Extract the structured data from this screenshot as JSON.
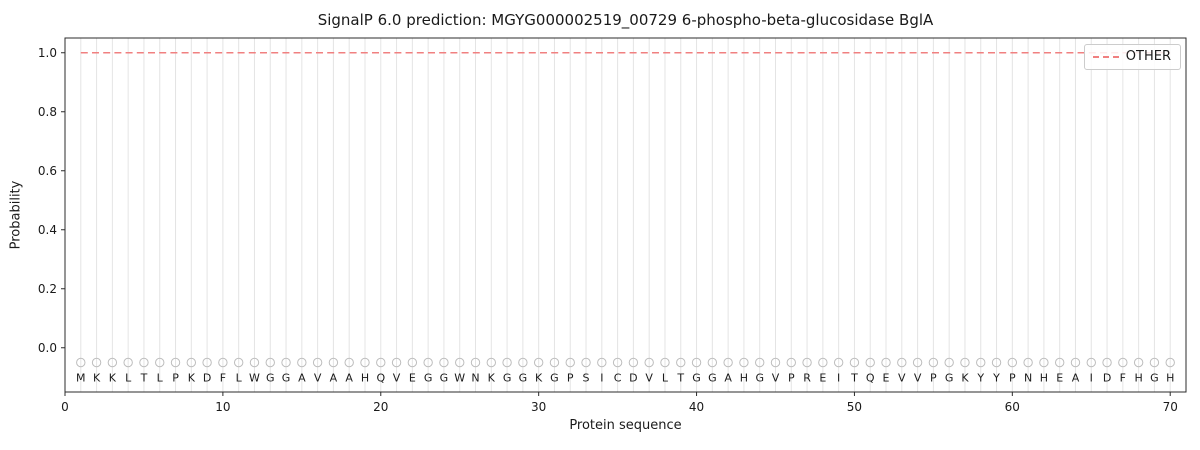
{
  "chart_data": {
    "type": "line",
    "title": "SignalP 6.0 prediction: MGYG000002519_00729 6-phospho-beta-glucosidase BglA",
    "xlabel": "Protein sequence",
    "ylabel": "Probability",
    "xlim": [
      0,
      71
    ],
    "ylim": [
      -0.15,
      1.05
    ],
    "xticks": [
      0,
      10,
      20,
      30,
      40,
      50,
      60,
      70
    ],
    "yticks": [
      "0.0",
      "0.2",
      "0.4",
      "0.6",
      "0.8",
      "1.0"
    ],
    "grid": "vertical-line-per-residue",
    "legend_position": "upper right",
    "sequence": "MKKLTLPKDFLWGGAVAAHQVEGGWNKGGKGPSICDVLTGGAHGVPREITQEVVPGKYYPNHEAIDFHGH",
    "series": [
      {
        "name": "OTHER",
        "style": "dashed",
        "color": "#f08080",
        "value": 1.0,
        "x_start": 1,
        "x_end": 70
      }
    ],
    "markers": {
      "shape": "circle",
      "y": -0.05,
      "color": "#bdbdbd"
    },
    "letters_y": -0.1,
    "colors": {
      "grid": "#e4e4e4",
      "spine": "#2b2b2b",
      "text": "#1a1a1a"
    }
  }
}
